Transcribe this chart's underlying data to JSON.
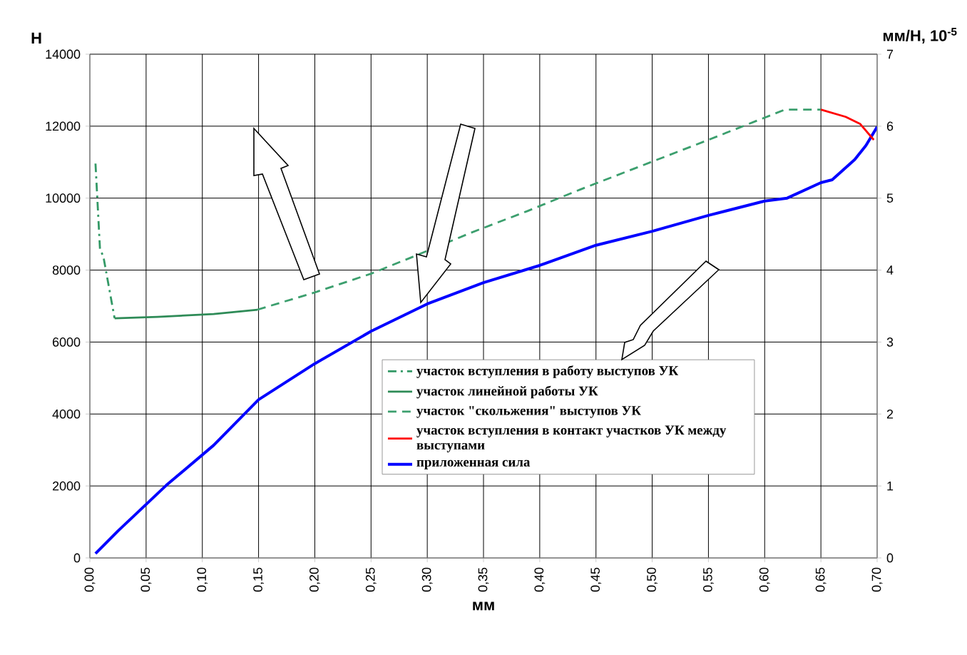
{
  "chart_data": {
    "type": "line",
    "xlabel": "мм",
    "ylabel": "Н",
    "y2label": "мм/Н, 10$^{-5}$",
    "xlim": [
      0,
      0.7
    ],
    "ylim": [
      0,
      14000
    ],
    "y2lim": [
      0,
      7
    ],
    "xticks": [
      {
        "value": 0,
        "label": "0,00"
      },
      {
        "value": 0.05,
        "label": "0,05"
      },
      {
        "value": 0.1,
        "label": "0,10"
      },
      {
        "value": 0.15,
        "label": "0,15"
      },
      {
        "value": 0.2,
        "label": "0,20"
      },
      {
        "value": 0.25,
        "label": "0,25"
      },
      {
        "value": 0.3,
        "label": "0,30"
      },
      {
        "value": 0.35,
        "label": "0,35"
      },
      {
        "value": 0.4,
        "label": "0,40"
      },
      {
        "value": 0.45,
        "label": "0,45"
      },
      {
        "value": 0.5,
        "label": "0,50"
      },
      {
        "value": 0.55,
        "label": "0,55"
      },
      {
        "value": 0.6,
        "label": "0,60"
      },
      {
        "value": 0.65,
        "label": "0,65"
      },
      {
        "value": 0.7,
        "label": "0,70"
      }
    ],
    "yticks": [
      0,
      2000,
      4000,
      6000,
      8000,
      10000,
      12000,
      14000
    ],
    "y2ticks": [
      0,
      1,
      2,
      3,
      4,
      5,
      6,
      7
    ],
    "grid": true,
    "legend": "bottom right",
    "series": [
      {
        "name": "участок вступления в работу выступов УК",
        "color": "#339966",
        "axis": "y2",
        "line_style": "dashdot",
        "x": [
          0.005,
          0.009,
          0.012,
          0.022
        ],
        "values": [
          5.48,
          4.29,
          4.19,
          3.33
        ]
      },
      {
        "name": "участок линейной работы УК",
        "color": "#2e8b57",
        "axis": "y2",
        "line_style": "solid",
        "x": [
          0.022,
          0.06,
          0.11,
          0.149
        ],
        "values": [
          3.33,
          3.35,
          3.39,
          3.45
        ]
      },
      {
        "name": "участок \"скольжения\" выступов УК",
        "color": "#3c9f6e",
        "axis": "y2",
        "line_style": "dashed",
        "x": [
          0.149,
          0.2,
          0.25,
          0.288,
          0.339,
          0.389,
          0.436,
          0.55,
          0.618,
          0.65
        ],
        "values": [
          3.45,
          3.69,
          3.95,
          4.19,
          4.52,
          4.82,
          5.12,
          5.81,
          6.23,
          6.23
        ]
      },
      {
        "name": "участок вступления в контакт участков УК между выступами",
        "color": "#ff0000",
        "axis": "y2",
        "line_style": "solid",
        "x": [
          0.65,
          0.672,
          0.685,
          0.697
        ],
        "values": [
          6.23,
          6.13,
          6.03,
          5.81
        ]
      },
      {
        "name": "приложенная сила",
        "color": "#0000ff",
        "axis": "y",
        "line_style": "solid",
        "x": [
          0.005,
          0.025,
          0.068,
          0.11,
          0.15,
          0.2,
          0.25,
          0.3,
          0.35,
          0.4,
          0.45,
          0.5,
          0.55,
          0.6,
          0.62,
          0.65,
          0.66,
          0.68,
          0.69,
          0.7
        ],
        "values": [
          120,
          750,
          2020,
          3130,
          4400,
          5400,
          6300,
          7060,
          7650,
          8130,
          8690,
          9080,
          9520,
          9920,
          10000,
          10430,
          10510,
          11070,
          11460,
          11980
        ]
      }
    ]
  }
}
